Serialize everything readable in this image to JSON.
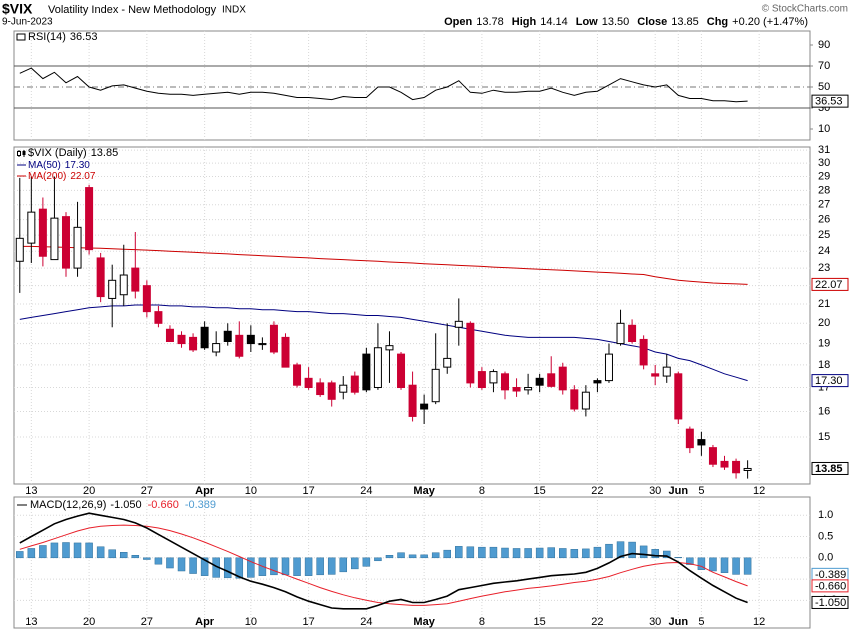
{
  "header": {
    "symbol": "$VIX",
    "name": "Volatility Index - New Methodology",
    "exchange": "INDX",
    "date": "9-Jun-2023",
    "quote": [
      {
        "label": "Open",
        "value": "13.78"
      },
      {
        "label": "High",
        "value": "14.14"
      },
      {
        "label": "Low",
        "value": "13.50"
      },
      {
        "label": "Close",
        "value": "13.85"
      },
      {
        "label": "Chg",
        "value": "+0.20 (+1.47%)"
      }
    ],
    "copyright": "© StockCharts.com"
  },
  "chart_data": [
    {
      "type": "line",
      "title": "RSI(14)",
      "color": "#000000",
      "ylim": [
        0,
        100
      ],
      "yticks": [
        10,
        30,
        50,
        70,
        90
      ],
      "levels": [
        30,
        70
      ],
      "midline": 50,
      "values": [
        63,
        68,
        58,
        64,
        54,
        60,
        50,
        47,
        51,
        52,
        49,
        46,
        44,
        43,
        43,
        42,
        43,
        44,
        45,
        43,
        45,
        45,
        44,
        42,
        40,
        40,
        39,
        38,
        41,
        40,
        40,
        50,
        50,
        45,
        38,
        40,
        47,
        50,
        56,
        45,
        44,
        47,
        45,
        45,
        46,
        46,
        49,
        45,
        42,
        45,
        46,
        52,
        58,
        55,
        52,
        50,
        52,
        42,
        39,
        39,
        37,
        37,
        36,
        36.53
      ]
    },
    {
      "type": "candlestick",
      "title": "$VIX (Daily)",
      "up_color": "#000000",
      "down_color": "#cc0033",
      "log_scale": true,
      "grid": true,
      "ylim": [
        13.35,
        31.25
      ],
      "yticks": [
        15,
        16,
        17,
        18,
        19,
        20,
        21,
        22,
        23,
        24,
        25,
        26,
        27,
        28,
        29,
        30,
        31
      ],
      "xlim": [
        -0.5,
        68.4
      ],
      "xticks": [
        {
          "value": 1,
          "label": "13"
        },
        {
          "value": 6,
          "label": "20"
        },
        {
          "value": 11,
          "label": "27"
        },
        {
          "value": 16,
          "label": "Apr"
        },
        {
          "value": 20,
          "label": "10"
        },
        {
          "value": 25,
          "label": "17"
        },
        {
          "value": 30,
          "label": "24"
        },
        {
          "value": 35,
          "label": "May"
        },
        {
          "value": 40,
          "label": "8"
        },
        {
          "value": 45,
          "label": "15"
        },
        {
          "value": 50,
          "label": "22"
        },
        {
          "value": 55,
          "label": "30"
        },
        {
          "value": 57,
          "label": "Jun"
        },
        {
          "value": 59,
          "label": "5"
        },
        {
          "value": 64,
          "label": "12"
        }
      ],
      "open": [
        23.4,
        24.5,
        26.7,
        23.5,
        26.2,
        23.0,
        28.2,
        23.6,
        21.3,
        21.5,
        23.0,
        22.0,
        20.6,
        19.7,
        19.4,
        19.3,
        19.8,
        18.6,
        19.6,
        19.4,
        19.4,
        18.95,
        19.9,
        19.3,
        18.0,
        17.4,
        17.2,
        17.2,
        16.8,
        17.5,
        18.5,
        17.0,
        18.7,
        18.5,
        17.1,
        16.3,
        16.4,
        17.9,
        19.8,
        20.0,
        17.7,
        17.2,
        17.6,
        17.0,
        16.9,
        17.4,
        17.6,
        17.9,
        16.9,
        16.1,
        17.3,
        17.3,
        19.0,
        19.9,
        19.2,
        17.6,
        17.5,
        17.6,
        15.3,
        14.9,
        14.6,
        14.1,
        14.1,
        13.78
      ],
      "high": [
        28.9,
        29.0,
        27.5,
        29.0,
        26.5,
        27.2,
        28.4,
        23.9,
        23.2,
        24.4,
        25.2,
        22.3,
        20.9,
        19.9,
        19.6,
        19.5,
        20.1,
        19.6,
        20.0,
        20.1,
        19.9,
        19.3,
        20.1,
        19.5,
        18.1,
        17.9,
        17.4,
        17.3,
        17.5,
        17.7,
        18.8,
        20.0,
        19.6,
        18.6,
        17.7,
        16.7,
        19.5,
        20.0,
        21.3,
        20.1,
        17.9,
        17.8,
        17.7,
        17.4,
        17.6,
        17.6,
        18.4,
        18.1,
        17.1,
        17.1,
        17.4,
        19.0,
        20.7,
        20.2,
        19.4,
        18.0,
        18.5,
        17.7,
        15.4,
        15.2,
        14.7,
        14.3,
        14.2,
        14.14
      ],
      "low": [
        21.6,
        23.3,
        23.1,
        23.5,
        22.5,
        22.5,
        23.8,
        21.1,
        19.8,
        20.9,
        21.3,
        20.3,
        19.8,
        19.1,
        18.8,
        18.6,
        18.7,
        18.4,
        18.9,
        18.3,
        18.6,
        18.7,
        18.5,
        17.9,
        17.0,
        16.9,
        16.6,
        16.2,
        16.5,
        16.7,
        16.8,
        16.9,
        17.2,
        16.9,
        15.6,
        15.5,
        16.3,
        17.6,
        18.9,
        17.0,
        16.9,
        16.8,
        16.5,
        16.6,
        16.7,
        16.8,
        17.0,
        16.7,
        16.0,
        15.8,
        16.8,
        17.2,
        18.9,
        19.0,
        17.8,
        17.1,
        17.2,
        15.5,
        14.4,
        14.3,
        13.9,
        13.8,
        13.5,
        13.5
      ],
      "close": [
        24.8,
        26.5,
        23.7,
        26.1,
        23.0,
        25.5,
        24.1,
        21.4,
        22.3,
        22.6,
        21.7,
        20.6,
        20.0,
        19.1,
        19.0,
        18.7,
        18.8,
        19.0,
        19.1,
        18.4,
        19.0,
        19.0,
        18.6,
        17.9,
        17.1,
        17.0,
        16.7,
        16.5,
        17.1,
        16.8,
        16.9,
        18.8,
        18.9,
        17.0,
        15.8,
        16.1,
        17.8,
        18.3,
        20.1,
        17.2,
        17.0,
        17.7,
        16.9,
        16.85,
        17.0,
        17.1,
        17.05,
        16.9,
        16.1,
        16.8,
        17.2,
        18.5,
        20.0,
        19.1,
        18.0,
        17.5,
        17.9,
        15.7,
        14.6,
        14.7,
        14.0,
        13.9,
        13.7,
        13.85
      ],
      "series": [
        {
          "name": "MA(50)",
          "color": "#000080",
          "last_label": "17.30",
          "values": [
            20.2,
            20.3,
            20.4,
            20.5,
            20.6,
            20.7,
            20.8,
            20.85,
            20.9,
            20.9,
            20.95,
            20.95,
            20.95,
            20.9,
            20.9,
            20.85,
            20.85,
            20.8,
            20.8,
            20.75,
            20.75,
            20.7,
            20.7,
            20.65,
            20.6,
            20.6,
            20.55,
            20.5,
            20.5,
            20.45,
            20.4,
            20.4,
            20.35,
            20.3,
            20.2,
            20.1,
            20.0,
            19.9,
            19.8,
            19.7,
            19.6,
            19.5,
            19.4,
            19.35,
            19.3,
            19.3,
            19.3,
            19.3,
            19.3,
            19.25,
            19.2,
            19.1,
            19.0,
            18.9,
            18.8,
            18.6,
            18.5,
            18.3,
            18.2,
            18.0,
            17.8,
            17.6,
            17.45,
            17.3
          ]
        },
        {
          "name": "MA(200)",
          "color": "#cc0000",
          "values": [
            24.3,
            24.3,
            24.28,
            24.26,
            24.24,
            24.22,
            24.2,
            24.18,
            24.15,
            24.12,
            24.1,
            24.07,
            24.04,
            24.0,
            23.97,
            23.94,
            23.9,
            23.87,
            23.84,
            23.8,
            23.77,
            23.73,
            23.7,
            23.66,
            23.63,
            23.6,
            23.56,
            23.53,
            23.5,
            23.46,
            23.43,
            23.4,
            23.36,
            23.33,
            23.3,
            23.26,
            23.23,
            23.2,
            23.16,
            23.13,
            23.1,
            23.06,
            23.03,
            23.0,
            22.96,
            22.93,
            22.9,
            22.87,
            22.84,
            22.8,
            22.77,
            22.74,
            22.7,
            22.66,
            22.63,
            22.5,
            22.4,
            22.3,
            22.25,
            22.2,
            22.15,
            22.12,
            22.1,
            22.07
          ]
        }
      ]
    },
    {
      "type": "macd",
      "title": "MACD(12,26,9)",
      "grid": true,
      "ylim": [
        -1.58,
        1.43
      ],
      "yticks": [
        {
          "value": 1,
          "label": "1.0"
        },
        {
          "value": 0.5,
          "label": "0.5"
        },
        {
          "value": 0,
          "label": "0.0"
        },
        {
          "value": -0.5,
          "label": "-0.5"
        },
        {
          "value": -1,
          "label": "-1.0"
        }
      ],
      "macd": {
        "color": "#000000",
        "last_label": "-1.050",
        "values": [
          0.35,
          0.5,
          0.65,
          0.8,
          0.9,
          0.98,
          1.05,
          1.0,
          0.95,
          0.9,
          0.82,
          0.7,
          0.55,
          0.4,
          0.25,
          0.1,
          -0.05,
          -0.2,
          -0.32,
          -0.45,
          -0.55,
          -0.62,
          -0.7,
          -0.8,
          -0.92,
          -1.02,
          -1.1,
          -1.18,
          -1.2,
          -1.2,
          -1.2,
          -1.12,
          -1.02,
          -0.98,
          -1.05,
          -1.05,
          -0.98,
          -0.9,
          -0.75,
          -0.7,
          -0.65,
          -0.6,
          -0.57,
          -0.54,
          -0.5,
          -0.46,
          -0.42,
          -0.4,
          -0.38,
          -0.34,
          -0.25,
          -0.12,
          0.03,
          0.1,
          0.08,
          0.05,
          0.04,
          -0.1,
          -0.3,
          -0.48,
          -0.65,
          -0.8,
          -0.95,
          -1.05
        ]
      },
      "signal": {
        "color": "#e8202a",
        "last_label": "-0.660",
        "values": [
          0.2,
          0.28,
          0.36,
          0.45,
          0.54,
          0.63,
          0.7,
          0.74,
          0.76,
          0.77,
          0.76,
          0.74,
          0.7,
          0.64,
          0.56,
          0.47,
          0.37,
          0.26,
          0.15,
          0.03,
          -0.09,
          -0.2,
          -0.3,
          -0.4,
          -0.5,
          -0.6,
          -0.7,
          -0.79,
          -0.87,
          -0.94,
          -1.0,
          -1.05,
          -1.08,
          -1.1,
          -1.12,
          -1.12,
          -1.1,
          -1.08,
          -1.02,
          -0.96,
          -0.9,
          -0.85,
          -0.8,
          -0.76,
          -0.72,
          -0.69,
          -0.66,
          -0.62,
          -0.58,
          -0.55,
          -0.5,
          -0.44,
          -0.35,
          -0.27,
          -0.2,
          -0.15,
          -0.12,
          -0.11,
          -0.14,
          -0.2,
          -0.34,
          -0.45,
          -0.56,
          -0.66
        ]
      },
      "histogram": {
        "color": "#4f9bd0",
        "last_label": "-0.389",
        "values": [
          0.15,
          0.22,
          0.29,
          0.35,
          0.36,
          0.35,
          0.35,
          0.26,
          0.19,
          0.13,
          0.06,
          -0.04,
          -0.15,
          -0.24,
          -0.31,
          -0.37,
          -0.42,
          -0.46,
          -0.47,
          -0.48,
          -0.46,
          -0.42,
          -0.4,
          -0.4,
          -0.42,
          -0.42,
          -0.4,
          -0.39,
          -0.33,
          -0.26,
          -0.2,
          -0.07,
          0.06,
          0.12,
          0.07,
          0.07,
          0.12,
          0.18,
          0.27,
          0.26,
          0.25,
          0.25,
          0.23,
          0.22,
          0.22,
          0.23,
          0.24,
          0.22,
          0.2,
          0.21,
          0.25,
          0.32,
          0.38,
          0.37,
          0.28,
          0.2,
          0.16,
          0.01,
          -0.16,
          -0.28,
          -0.31,
          -0.35,
          -0.39,
          -0.389
        ]
      }
    }
  ]
}
